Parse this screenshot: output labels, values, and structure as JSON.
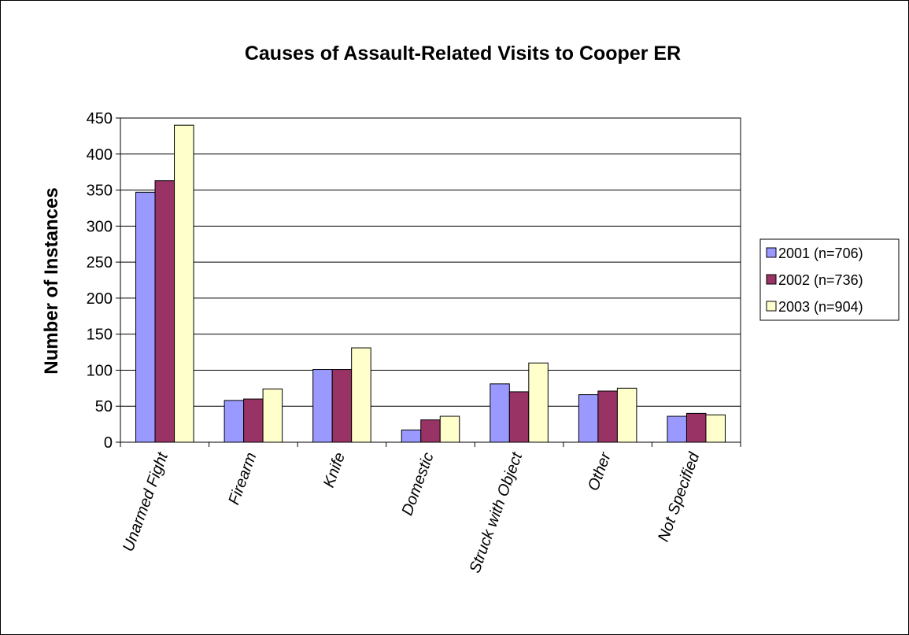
{
  "chart_data": {
    "type": "bar",
    "title": "Causes of Assault-Related Visits to Cooper ER",
    "xlabel": "",
    "ylabel": "Number of Instances",
    "ylim": [
      0,
      450
    ],
    "yticks": [
      0,
      50,
      100,
      150,
      200,
      250,
      300,
      350,
      400,
      450
    ],
    "grid": true,
    "legend_position": "right",
    "categories": [
      "Unarmed Fight",
      "Firearm",
      "Knife",
      "Domestic",
      "Struck with Object",
      "Other",
      "Not Specified"
    ],
    "series": [
      {
        "name": "2001 (n=706)",
        "color": "#9999ff",
        "values": [
          347,
          58,
          101,
          17,
          81,
          66,
          36
        ]
      },
      {
        "name": "2002 (n=736)",
        "color": "#993366",
        "values": [
          363,
          60,
          101,
          31,
          70,
          71,
          40
        ]
      },
      {
        "name": "2003 (n=904)",
        "color": "#ffffcc",
        "values": [
          440,
          74,
          131,
          36,
          110,
          75,
          38
        ]
      }
    ]
  }
}
